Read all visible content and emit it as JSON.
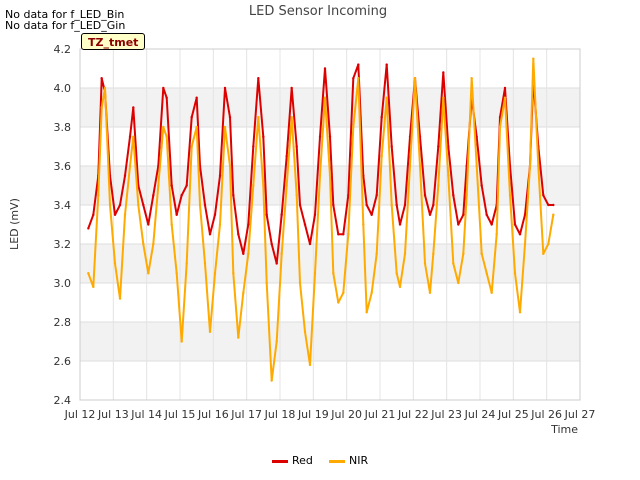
{
  "no_data_notes": [
    "No data for f_LED_Bin",
    "No data for f_LED_Gin"
  ],
  "timezone_badge": "TZ_tmet",
  "chart_data": {
    "type": "line",
    "title": "LED Sensor Incoming",
    "xlabel": "Time",
    "ylabel": "LED (mV)",
    "xlim": [
      12,
      27
    ],
    "ylim": [
      2.4,
      4.2
    ],
    "xticks": [
      12,
      13,
      14,
      15,
      16,
      17,
      18,
      19,
      20,
      21,
      22,
      23,
      24,
      25,
      26,
      27
    ],
    "xtick_labels": [
      "Jul 12",
      "Jul 13",
      "Jul 14",
      "Jul 15",
      "Jul 16",
      "Jul 17",
      "Jul 18",
      "Jul 19",
      "Jul 20",
      "Jul 21",
      "Jul 22",
      "Jul 23",
      "Jul 24",
      "Jul 25",
      "Jul 26",
      "Jul 27"
    ],
    "yticks": [
      2.4,
      2.6,
      2.8,
      3.0,
      3.2,
      3.4,
      3.6,
      3.8,
      4.0,
      4.2
    ],
    "ytick_labels": [
      "2.4",
      "2.6",
      "2.8",
      "3.0",
      "3.2",
      "3.4",
      "3.6",
      "3.8",
      "4.0",
      "4.2"
    ],
    "grid": true,
    "legend_position": "bottom-center",
    "series": [
      {
        "name": "Red",
        "color": "#dd0000",
        "x": [
          12.25,
          12.4,
          12.55,
          12.65,
          12.75,
          12.9,
          13.05,
          13.2,
          13.35,
          13.5,
          13.6,
          13.75,
          13.9,
          14.05,
          14.2,
          14.35,
          14.5,
          14.6,
          14.75,
          14.9,
          15.05,
          15.2,
          15.35,
          15.5,
          15.6,
          15.75,
          15.9,
          16.05,
          16.2,
          16.35,
          16.5,
          16.6,
          16.75,
          16.9,
          17.05,
          17.2,
          17.35,
          17.5,
          17.6,
          17.75,
          17.9,
          18.05,
          18.2,
          18.35,
          18.5,
          18.6,
          18.75,
          18.9,
          19.05,
          19.2,
          19.35,
          19.5,
          19.6,
          19.75,
          19.9,
          20.05,
          20.2,
          20.35,
          20.5,
          20.6,
          20.75,
          20.9,
          21.05,
          21.2,
          21.35,
          21.5,
          21.6,
          21.75,
          21.9,
          22.05,
          22.2,
          22.35,
          22.5,
          22.6,
          22.75,
          22.9,
          23.05,
          23.2,
          23.35,
          23.5,
          23.6,
          23.75,
          23.9,
          24.05,
          24.2,
          24.35,
          24.5,
          24.6,
          24.75,
          24.9,
          25.05,
          25.2,
          25.35,
          25.5,
          25.6,
          25.75,
          25.9,
          26.05,
          26.2
        ],
        "y": [
          3.28,
          3.35,
          3.55,
          4.05,
          3.98,
          3.55,
          3.35,
          3.4,
          3.55,
          3.75,
          3.9,
          3.5,
          3.4,
          3.3,
          3.45,
          3.6,
          4.0,
          3.95,
          3.5,
          3.35,
          3.45,
          3.5,
          3.85,
          3.95,
          3.6,
          3.4,
          3.25,
          3.35,
          3.55,
          4.0,
          3.85,
          3.45,
          3.25,
          3.15,
          3.3,
          3.7,
          4.05,
          3.75,
          3.35,
          3.2,
          3.1,
          3.35,
          3.65,
          4.0,
          3.7,
          3.4,
          3.3,
          3.2,
          3.35,
          3.75,
          4.1,
          3.75,
          3.4,
          3.25,
          3.25,
          3.45,
          4.05,
          4.12,
          3.55,
          3.4,
          3.35,
          3.45,
          3.85,
          4.12,
          3.7,
          3.4,
          3.3,
          3.4,
          3.75,
          4.05,
          3.75,
          3.45,
          3.35,
          3.4,
          3.7,
          4.08,
          3.7,
          3.45,
          3.3,
          3.35,
          3.6,
          3.95,
          3.75,
          3.5,
          3.35,
          3.3,
          3.4,
          3.85,
          4.0,
          3.6,
          3.3,
          3.25,
          3.35,
          3.6,
          4.05,
          3.7,
          3.45,
          3.4,
          3.4
        ]
      },
      {
        "name": "NIR",
        "color": "#ffaa00",
        "x": [
          12.25,
          12.4,
          12.55,
          12.65,
          12.75,
          12.9,
          13.05,
          13.2,
          13.35,
          13.5,
          13.6,
          13.75,
          13.9,
          14.05,
          14.2,
          14.35,
          14.5,
          14.6,
          14.75,
          14.9,
          15.05,
          15.2,
          15.35,
          15.5,
          15.6,
          15.75,
          15.9,
          16.05,
          16.2,
          16.35,
          16.5,
          16.6,
          16.75,
          16.9,
          17.05,
          17.2,
          17.35,
          17.5,
          17.6,
          17.75,
          17.9,
          18.05,
          18.2,
          18.35,
          18.5,
          18.6,
          18.75,
          18.9,
          19.05,
          19.2,
          19.35,
          19.5,
          19.6,
          19.75,
          19.9,
          20.05,
          20.2,
          20.35,
          20.5,
          20.6,
          20.75,
          20.9,
          21.05,
          21.2,
          21.35,
          21.5,
          21.6,
          21.75,
          21.9,
          22.05,
          22.2,
          22.35,
          22.5,
          22.6,
          22.75,
          22.9,
          23.05,
          23.2,
          23.35,
          23.5,
          23.6,
          23.75,
          23.9,
          24.05,
          24.2,
          24.35,
          24.5,
          24.6,
          24.75,
          24.9,
          25.05,
          25.2,
          25.35,
          25.5,
          25.6,
          25.75,
          25.9,
          26.05,
          26.2
        ],
        "y": [
          3.05,
          2.98,
          3.45,
          3.9,
          4.0,
          3.4,
          3.1,
          2.92,
          3.35,
          3.6,
          3.75,
          3.4,
          3.2,
          3.05,
          3.2,
          3.5,
          3.8,
          3.75,
          3.3,
          3.05,
          2.7,
          3.1,
          3.7,
          3.8,
          3.4,
          3.1,
          2.75,
          3.05,
          3.3,
          3.8,
          3.6,
          3.05,
          2.72,
          2.95,
          3.15,
          3.5,
          3.85,
          3.5,
          3.0,
          2.5,
          2.7,
          3.15,
          3.5,
          3.85,
          3.45,
          3.0,
          2.75,
          2.58,
          3.05,
          3.55,
          3.95,
          3.55,
          3.05,
          2.9,
          2.95,
          3.25,
          3.8,
          4.05,
          3.3,
          2.85,
          2.95,
          3.15,
          3.65,
          3.95,
          3.4,
          3.05,
          2.98,
          3.15,
          3.6,
          4.05,
          3.6,
          3.1,
          2.95,
          3.15,
          3.5,
          3.95,
          3.55,
          3.1,
          3.0,
          3.15,
          3.45,
          4.05,
          3.6,
          3.15,
          3.05,
          2.95,
          3.25,
          3.8,
          3.95,
          3.45,
          3.05,
          2.85,
          3.2,
          3.6,
          4.15,
          3.6,
          3.15,
          3.2,
          3.35
        ]
      }
    ]
  }
}
